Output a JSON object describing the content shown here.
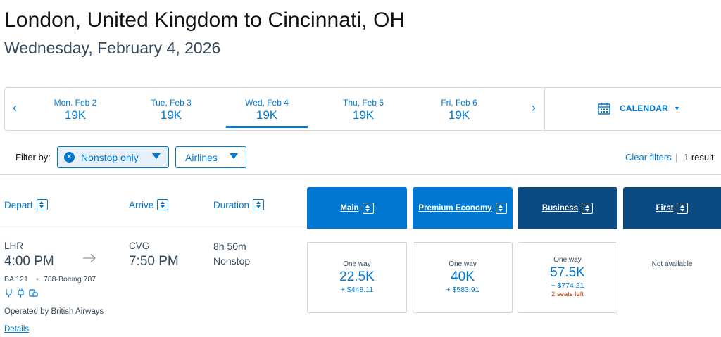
{
  "header": {
    "title": "London, United Kingdom to Cincinnati, OH",
    "subtitle": "Wednesday, February 4, 2026"
  },
  "datebar": {
    "prev_icon": "chevron-left-icon",
    "next_icon": "chevron-right-icon",
    "dates": [
      {
        "label": "Mon. Feb 2",
        "price": "19K"
      },
      {
        "label": "Tue, Feb 3",
        "price": "19K"
      },
      {
        "label": "Wed, Feb 4",
        "price": "19K",
        "selected": true
      },
      {
        "label": "Thu, Feb 5",
        "price": "19K"
      },
      {
        "label": "Fri, Feb 6",
        "price": "19K"
      }
    ],
    "calendar_label": "CALENDAR"
  },
  "filters": {
    "label": "Filter by:",
    "nonstop_label": "Nonstop only",
    "airlines_label": "Airlines",
    "clear_label": "Clear filters",
    "separator": "|",
    "result_count": "1 result"
  },
  "columns": {
    "depart": "Depart",
    "arrive": "Arrive",
    "duration": "Duration",
    "cabins": [
      "Main",
      "Premium Economy",
      "Business",
      "First"
    ]
  },
  "flight": {
    "depart_airport": "LHR",
    "depart_time": "4:00 PM",
    "arrive_airport": "CVG",
    "arrive_time": "7:50 PM",
    "flight_number": "BA 121",
    "meta_separator": "▪",
    "aircraft": "788-Boeing 787",
    "amenity_icons": [
      "wifi-icon",
      "power-outlet-icon",
      "entertainment-icon"
    ],
    "operated_by": "Operated by British Airways",
    "details_label": "Details",
    "duration": "8h 50m",
    "stops": "Nonstop",
    "fares": {
      "main": {
        "trip_type": "One way",
        "miles": "22.5K",
        "tax": "+ $448.11"
      },
      "premium": {
        "trip_type": "One way",
        "miles": "40K",
        "tax": "+ $583.91"
      },
      "business": {
        "trip_type": "One way",
        "miles": "57.5K",
        "tax": "+ $774.21",
        "seats": "2 seats left"
      },
      "first": {
        "status": "Not available"
      }
    }
  },
  "colors": {
    "link_blue": "#0078d2",
    "dark_navy": "#0b4a80",
    "text_gray": "#36495a",
    "warning_orange": "#c9400f"
  }
}
